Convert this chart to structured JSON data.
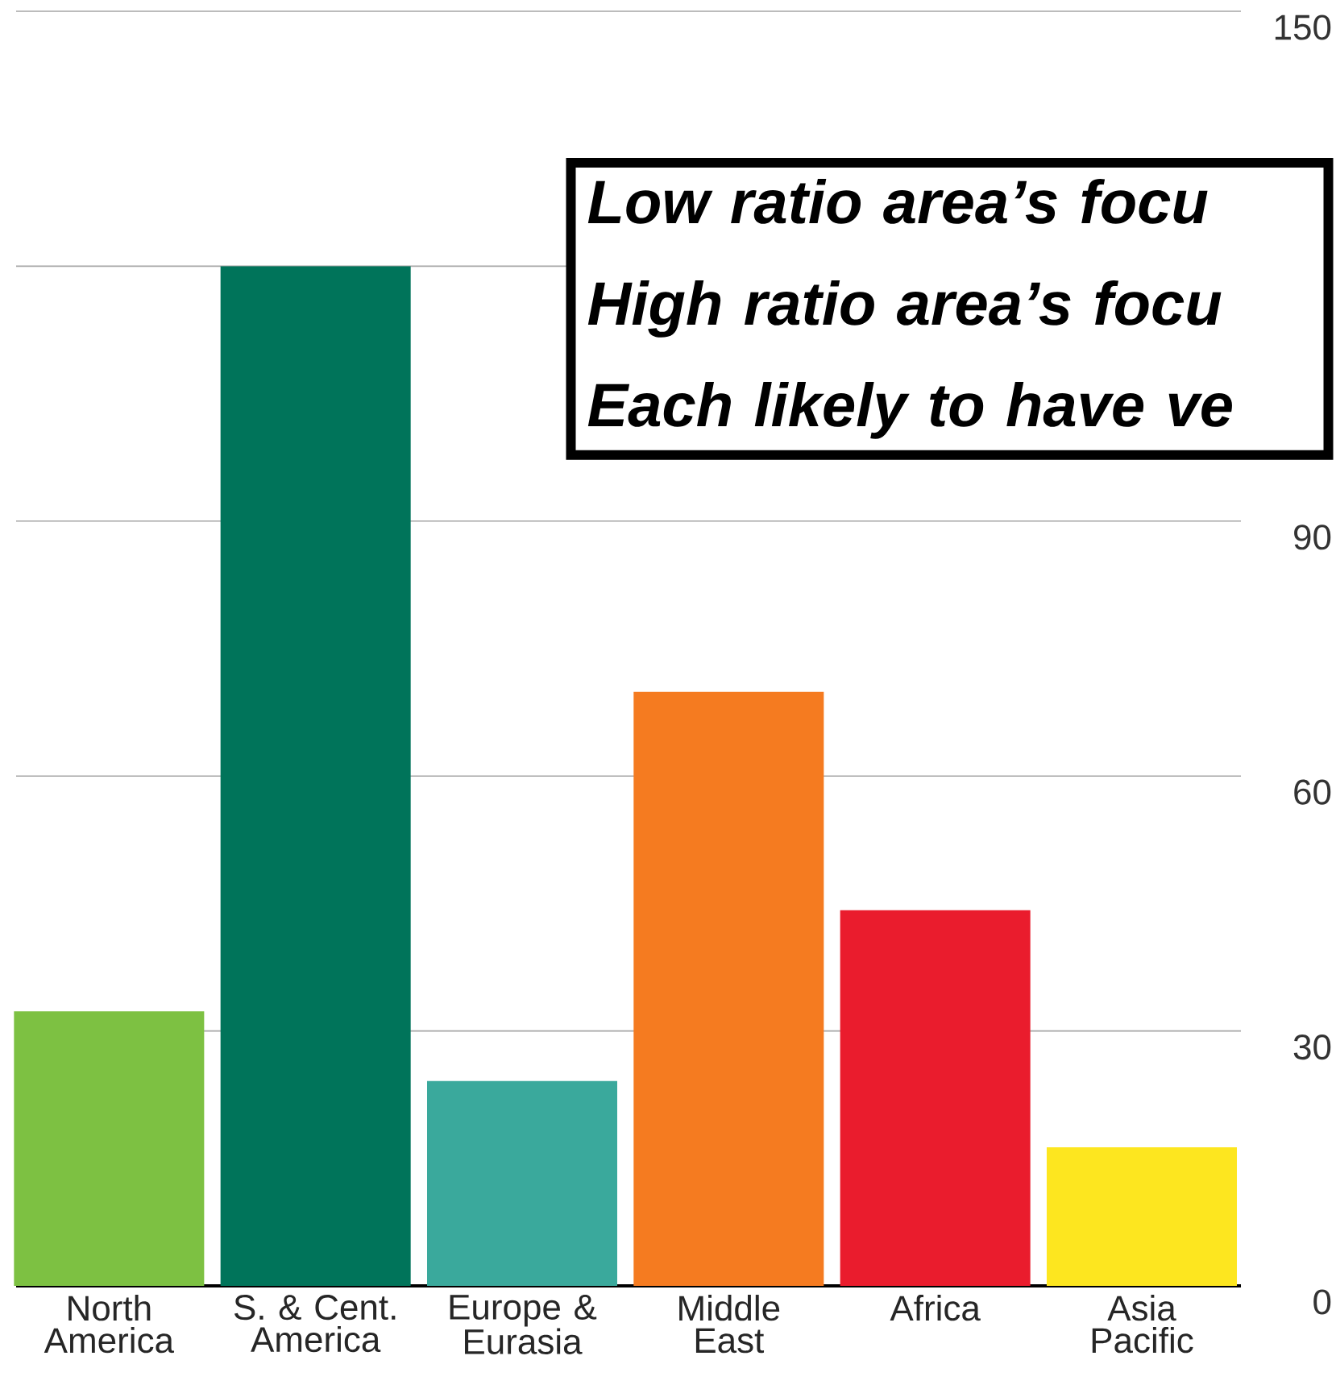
{
  "chart_data": {
    "type": "bar",
    "categories": [
      "North America",
      "S. & Cent. America",
      "Europe & Eurasia",
      "Middle East",
      "Africa",
      "Asia Pacific"
    ],
    "values": [
      32.3,
      120,
      24.1,
      69.9,
      44.2,
      16.3
    ],
    "colors": [
      "#7dc142",
      "#00745a",
      "#3aa99c",
      "#f57b20",
      "#ea1c2d",
      "#fde61f"
    ],
    "ylim": [
      0,
      150
    ],
    "yticks": [
      0,
      30,
      60,
      90,
      {
        "value": 120,
        "label": null
      },
      150
    ],
    "grid": "y",
    "annotations": [
      "Low ratio area’s focu",
      "High ratio area’s focu",
      "Each likely to have ve"
    ]
  }
}
